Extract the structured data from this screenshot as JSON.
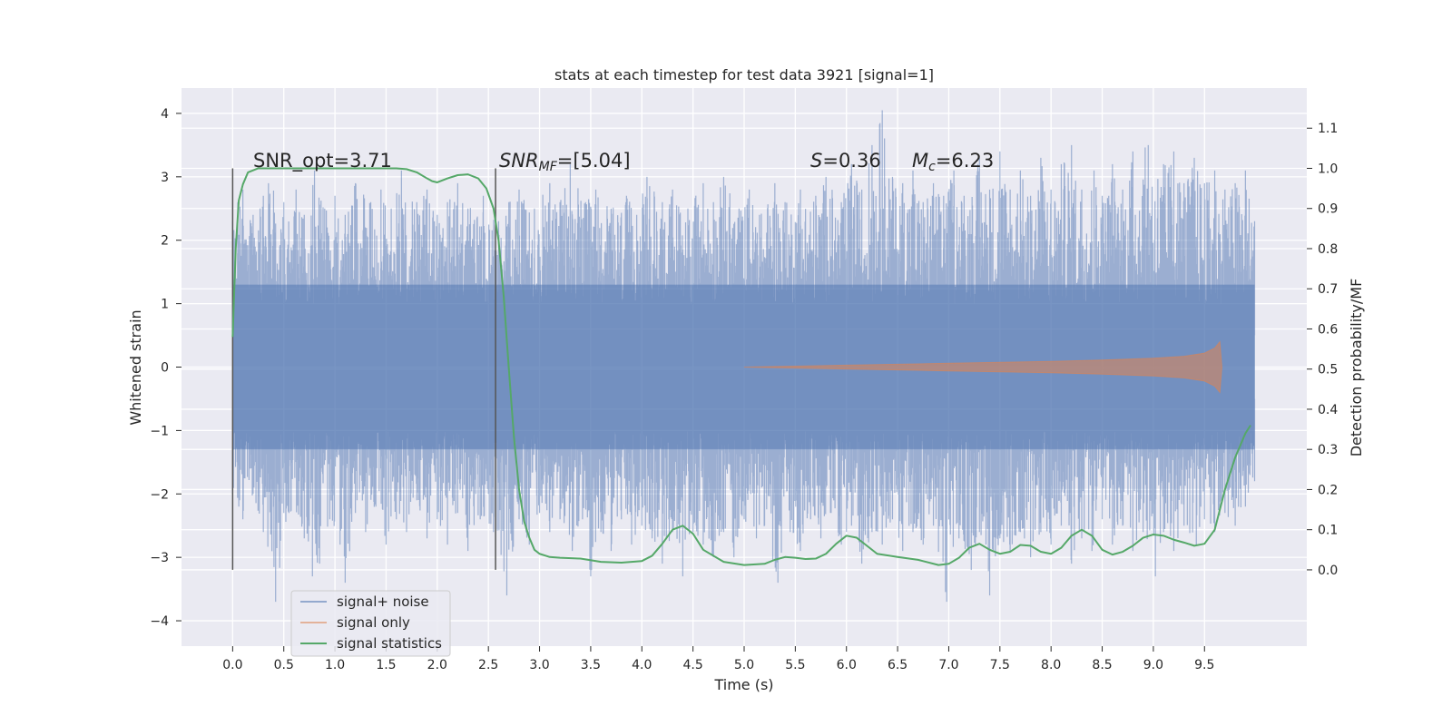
{
  "chart_data": {
    "type": "line",
    "title": "stats at each timestep for test data 3921 [signal=1]",
    "xlabel": "Time (s)",
    "ylabel": "Whitened strain",
    "y2label": "Detection probability/MF",
    "xlim": [
      -0.5,
      10.5
    ],
    "ylim": [
      -4.4,
      4.4
    ],
    "y2lim": [
      -0.19,
      1.2
    ],
    "grid": true,
    "legend_position": "lower-left",
    "x_ticks": [
      "0.0",
      "0.5",
      "1.0",
      "1.5",
      "2.0",
      "2.5",
      "3.0",
      "3.5",
      "4.0",
      "4.5",
      "5.0",
      "5.5",
      "6.0",
      "6.5",
      "7.0",
      "7.5",
      "8.0",
      "8.5",
      "9.0",
      "9.5"
    ],
    "y_ticks": [
      "4",
      "3",
      "2",
      "1",
      "0",
      "−1",
      "−2",
      "−3",
      "−4"
    ],
    "y2_ticks": [
      "1.1",
      "1.0",
      "0.9",
      "0.8",
      "0.7",
      "0.6",
      "0.5",
      "0.4",
      "0.3",
      "0.2",
      "0.1",
      "0.0"
    ],
    "annotations": {
      "snr_opt": "SNR_opt=3.71",
      "snr_mf_italic": "SNR",
      "snr_mf_sub": "MF",
      "snr_mf_value": "=[5.04]",
      "s_italic": "S",
      "s_value": "=0.36",
      "mc_italic": "M",
      "mc_sub": "c",
      "mc_value": "=6.23"
    },
    "vertical_markers_x": [
      0.0,
      2.57
    ],
    "series": [
      {
        "name": "signal+ noise",
        "color": "#4c72b0",
        "x_range": [
          0.0,
          9.99
        ],
        "core_band": [
          -1.3,
          1.3
        ],
        "peaks_max": [
          [
            0.0,
            2.3
          ],
          [
            0.05,
            2.6
          ],
          [
            0.1,
            2.8
          ],
          [
            0.2,
            2.4
          ],
          [
            0.3,
            2.7
          ],
          [
            0.35,
            2.9
          ],
          [
            0.5,
            2.6
          ],
          [
            0.62,
            2.8
          ],
          [
            0.7,
            2.4
          ],
          [
            0.8,
            3.1
          ],
          [
            0.9,
            2.5
          ],
          [
            1.0,
            2.7
          ],
          [
            1.1,
            2.4
          ],
          [
            1.2,
            2.9
          ],
          [
            1.35,
            2.6
          ],
          [
            1.45,
            2.8
          ],
          [
            1.55,
            2.5
          ],
          [
            1.65,
            3.1
          ],
          [
            1.8,
            2.6
          ],
          [
            1.9,
            2.8
          ],
          [
            2.0,
            2.4
          ],
          [
            2.1,
            2.6
          ],
          [
            2.2,
            2.9
          ],
          [
            2.3,
            2.5
          ],
          [
            2.45,
            2.7
          ],
          [
            2.6,
            2.3
          ],
          [
            2.7,
            2.6
          ],
          [
            2.8,
            2.8
          ],
          [
            2.95,
            2.5
          ],
          [
            3.1,
            2.9
          ],
          [
            3.2,
            2.6
          ],
          [
            3.3,
            3.2
          ],
          [
            3.45,
            2.6
          ],
          [
            3.55,
            2.8
          ],
          [
            3.7,
            2.5
          ],
          [
            3.85,
            2.7
          ],
          [
            3.95,
            2.4
          ],
          [
            4.05,
            3.0
          ],
          [
            4.2,
            2.6
          ],
          [
            4.3,
            2.8
          ],
          [
            4.45,
            2.5
          ],
          [
            4.6,
            2.9
          ],
          [
            4.7,
            2.6
          ],
          [
            4.8,
            3.0
          ],
          [
            4.95,
            2.5
          ],
          [
            5.05,
            2.8
          ],
          [
            5.15,
            2.4
          ],
          [
            5.3,
            2.9
          ],
          [
            5.4,
            2.6
          ],
          [
            5.55,
            2.8
          ],
          [
            5.7,
            2.7
          ],
          [
            5.8,
            3.0
          ],
          [
            5.95,
            2.6
          ],
          [
            6.05,
            3.2
          ],
          [
            6.15,
            2.8
          ],
          [
            6.25,
            3.5
          ],
          [
            6.35,
            4.05
          ],
          [
            6.45,
            3.0
          ],
          [
            6.55,
            2.9
          ],
          [
            6.65,
            3.1
          ],
          [
            6.75,
            2.6
          ],
          [
            6.85,
            2.9
          ],
          [
            6.95,
            2.7
          ],
          [
            7.05,
            3.1
          ],
          [
            7.15,
            2.7
          ],
          [
            7.3,
            3.3
          ],
          [
            7.4,
            2.8
          ],
          [
            7.5,
            3.4
          ],
          [
            7.6,
            2.8
          ],
          [
            7.7,
            3.1
          ],
          [
            7.8,
            2.7
          ],
          [
            7.9,
            3.3
          ],
          [
            8.0,
            2.8
          ],
          [
            8.1,
            3.2
          ],
          [
            8.2,
            3.5
          ],
          [
            8.3,
            2.8
          ],
          [
            8.42,
            3.1
          ],
          [
            8.5,
            2.7
          ],
          [
            8.6,
            3.2
          ],
          [
            8.7,
            2.8
          ],
          [
            8.8,
            3.4
          ],
          [
            8.95,
            3.5
          ],
          [
            9.1,
            3.2
          ],
          [
            9.2,
            3.4
          ],
          [
            9.3,
            2.9
          ],
          [
            9.4,
            3.3
          ],
          [
            9.5,
            2.9
          ],
          [
            9.6,
            3.1
          ],
          [
            9.7,
            2.8
          ],
          [
            9.8,
            2.9
          ],
          [
            9.9,
            3.1
          ],
          [
            9.99,
            2.3
          ]
        ],
        "peaks_min": [
          [
            0.0,
            -2.0
          ],
          [
            0.1,
            -2.4
          ],
          [
            0.2,
            -2.0
          ],
          [
            0.3,
            -2.6
          ],
          [
            0.42,
            -3.7
          ],
          [
            0.55,
            -2.3
          ],
          [
            0.7,
            -2.7
          ],
          [
            0.78,
            -3.3
          ],
          [
            0.85,
            -3.1
          ],
          [
            0.95,
            -2.4
          ],
          [
            1.05,
            -2.8
          ],
          [
            1.1,
            -3.4
          ],
          [
            1.2,
            -2.3
          ],
          [
            1.3,
            -2.6
          ],
          [
            1.4,
            -2.2
          ],
          [
            1.5,
            -2.8
          ],
          [
            1.6,
            -2.4
          ],
          [
            1.7,
            -2.6
          ],
          [
            1.8,
            -2.1
          ],
          [
            1.9,
            -2.7
          ],
          [
            2.0,
            -2.4
          ],
          [
            2.1,
            -2.8
          ],
          [
            2.2,
            -2.3
          ],
          [
            2.3,
            -2.9
          ],
          [
            2.42,
            -2.4
          ],
          [
            2.55,
            -2.6
          ],
          [
            2.68,
            -3.6
          ],
          [
            2.8,
            -2.4
          ],
          [
            2.9,
            -2.8
          ],
          [
            3.0,
            -2.3
          ],
          [
            3.1,
            -2.6
          ],
          [
            3.2,
            -2.4
          ],
          [
            3.32,
            -2.9
          ],
          [
            3.42,
            -2.4
          ],
          [
            3.5,
            -3.3
          ],
          [
            3.6,
            -2.6
          ],
          [
            3.7,
            -2.9
          ],
          [
            3.8,
            -2.4
          ],
          [
            3.9,
            -2.8
          ],
          [
            4.0,
            -2.5
          ],
          [
            4.1,
            -2.7
          ],
          [
            4.2,
            -3.1
          ],
          [
            4.3,
            -2.6
          ],
          [
            4.4,
            -3.3
          ],
          [
            4.5,
            -2.6
          ],
          [
            4.6,
            -2.8
          ],
          [
            4.7,
            -3.0
          ],
          [
            4.8,
            -2.6
          ],
          [
            4.9,
            -3.0
          ],
          [
            5.0,
            -2.4
          ],
          [
            5.12,
            -2.7
          ],
          [
            5.2,
            -2.5
          ],
          [
            5.33,
            -3.4
          ],
          [
            5.45,
            -2.6
          ],
          [
            5.55,
            -2.9
          ],
          [
            5.65,
            -2.4
          ],
          [
            5.75,
            -2.7
          ],
          [
            5.85,
            -2.3
          ],
          [
            5.95,
            -2.8
          ],
          [
            6.05,
            -2.5
          ],
          [
            6.15,
            -3.1
          ],
          [
            6.25,
            -2.6
          ],
          [
            6.35,
            -2.8
          ],
          [
            6.45,
            -2.4
          ],
          [
            6.55,
            -2.9
          ],
          [
            6.65,
            -2.6
          ],
          [
            6.75,
            -2.8
          ],
          [
            6.85,
            -2.5
          ],
          [
            6.98,
            -3.7
          ],
          [
            7.1,
            -2.7
          ],
          [
            7.22,
            -3.2
          ],
          [
            7.3,
            -2.6
          ],
          [
            7.4,
            -3.6
          ],
          [
            7.5,
            -2.7
          ],
          [
            7.6,
            -2.9
          ],
          [
            7.7,
            -2.6
          ],
          [
            7.8,
            -3.0
          ],
          [
            7.9,
            -2.6
          ],
          [
            8.0,
            -2.8
          ],
          [
            8.1,
            -2.5
          ],
          [
            8.2,
            -3.1
          ],
          [
            8.3,
            -2.7
          ],
          [
            8.4,
            -2.9
          ],
          [
            8.5,
            -2.4
          ],
          [
            8.6,
            -2.8
          ],
          [
            8.7,
            -2.5
          ],
          [
            8.8,
            -2.9
          ],
          [
            8.9,
            -2.6
          ],
          [
            9.02,
            -3.3
          ],
          [
            9.1,
            -2.6
          ],
          [
            9.2,
            -2.9
          ],
          [
            9.3,
            -2.5
          ],
          [
            9.42,
            -2.8
          ],
          [
            9.5,
            -2.4
          ],
          [
            9.6,
            -2.6
          ],
          [
            9.7,
            -2.3
          ],
          [
            9.8,
            -2.5
          ],
          [
            9.9,
            -2.2
          ],
          [
            9.99,
            -1.8
          ]
        ]
      },
      {
        "name": "signal only",
        "color": "#dd8452",
        "envelope": [
          [
            5.0,
            0.0
          ],
          [
            6.0,
            0.03
          ],
          [
            7.0,
            0.06
          ],
          [
            8.0,
            0.09
          ],
          [
            8.5,
            0.11
          ],
          [
            9.0,
            0.14
          ],
          [
            9.3,
            0.17
          ],
          [
            9.5,
            0.22
          ],
          [
            9.6,
            0.3
          ],
          [
            9.65,
            0.4
          ],
          [
            9.67,
            0.0
          ]
        ]
      },
      {
        "name": "signal statistics",
        "color": "#55a868",
        "axis": "right",
        "x": [
          0.0,
          0.03,
          0.06,
          0.1,
          0.15,
          0.25,
          0.5,
          0.8,
          1.2,
          1.6,
          1.7,
          1.8,
          1.9,
          1.95,
          2.0,
          2.1,
          2.2,
          2.3,
          2.4,
          2.48,
          2.55,
          2.6,
          2.65,
          2.7,
          2.75,
          2.8,
          2.85,
          2.9,
          2.95,
          3.0,
          3.1,
          3.2,
          3.4,
          3.6,
          3.8,
          4.0,
          4.1,
          4.2,
          4.3,
          4.4,
          4.5,
          4.6,
          4.8,
          5.0,
          5.2,
          5.3,
          5.4,
          5.5,
          5.6,
          5.7,
          5.8,
          5.9,
          6.0,
          6.1,
          6.2,
          6.3,
          6.5,
          6.7,
          6.9,
          7.0,
          7.1,
          7.2,
          7.3,
          7.4,
          7.5,
          7.6,
          7.7,
          7.8,
          7.9,
          8.0,
          8.1,
          8.2,
          8.3,
          8.4,
          8.5,
          8.6,
          8.7,
          8.8,
          8.9,
          9.0,
          9.1,
          9.2,
          9.3,
          9.4,
          9.5,
          9.6,
          9.7,
          9.8,
          9.9,
          9.95
        ],
        "values": [
          0.58,
          0.8,
          0.92,
          0.96,
          0.99,
          1.0,
          1.0,
          1.0,
          1.0,
          1.0,
          0.998,
          0.99,
          0.975,
          0.968,
          0.965,
          0.975,
          0.983,
          0.985,
          0.975,
          0.95,
          0.9,
          0.82,
          0.68,
          0.5,
          0.33,
          0.2,
          0.12,
          0.08,
          0.05,
          0.04,
          0.032,
          0.03,
          0.028,
          0.02,
          0.018,
          0.022,
          0.035,
          0.065,
          0.1,
          0.11,
          0.09,
          0.05,
          0.02,
          0.012,
          0.015,
          0.025,
          0.032,
          0.03,
          0.027,
          0.028,
          0.04,
          0.065,
          0.085,
          0.08,
          0.06,
          0.04,
          0.032,
          0.025,
          0.012,
          0.015,
          0.03,
          0.055,
          0.065,
          0.05,
          0.04,
          0.045,
          0.062,
          0.06,
          0.045,
          0.04,
          0.055,
          0.085,
          0.1,
          0.085,
          0.05,
          0.038,
          0.045,
          0.06,
          0.08,
          0.088,
          0.085,
          0.075,
          0.068,
          0.06,
          0.065,
          0.1,
          0.2,
          0.28,
          0.34,
          0.36
        ]
      }
    ]
  }
}
